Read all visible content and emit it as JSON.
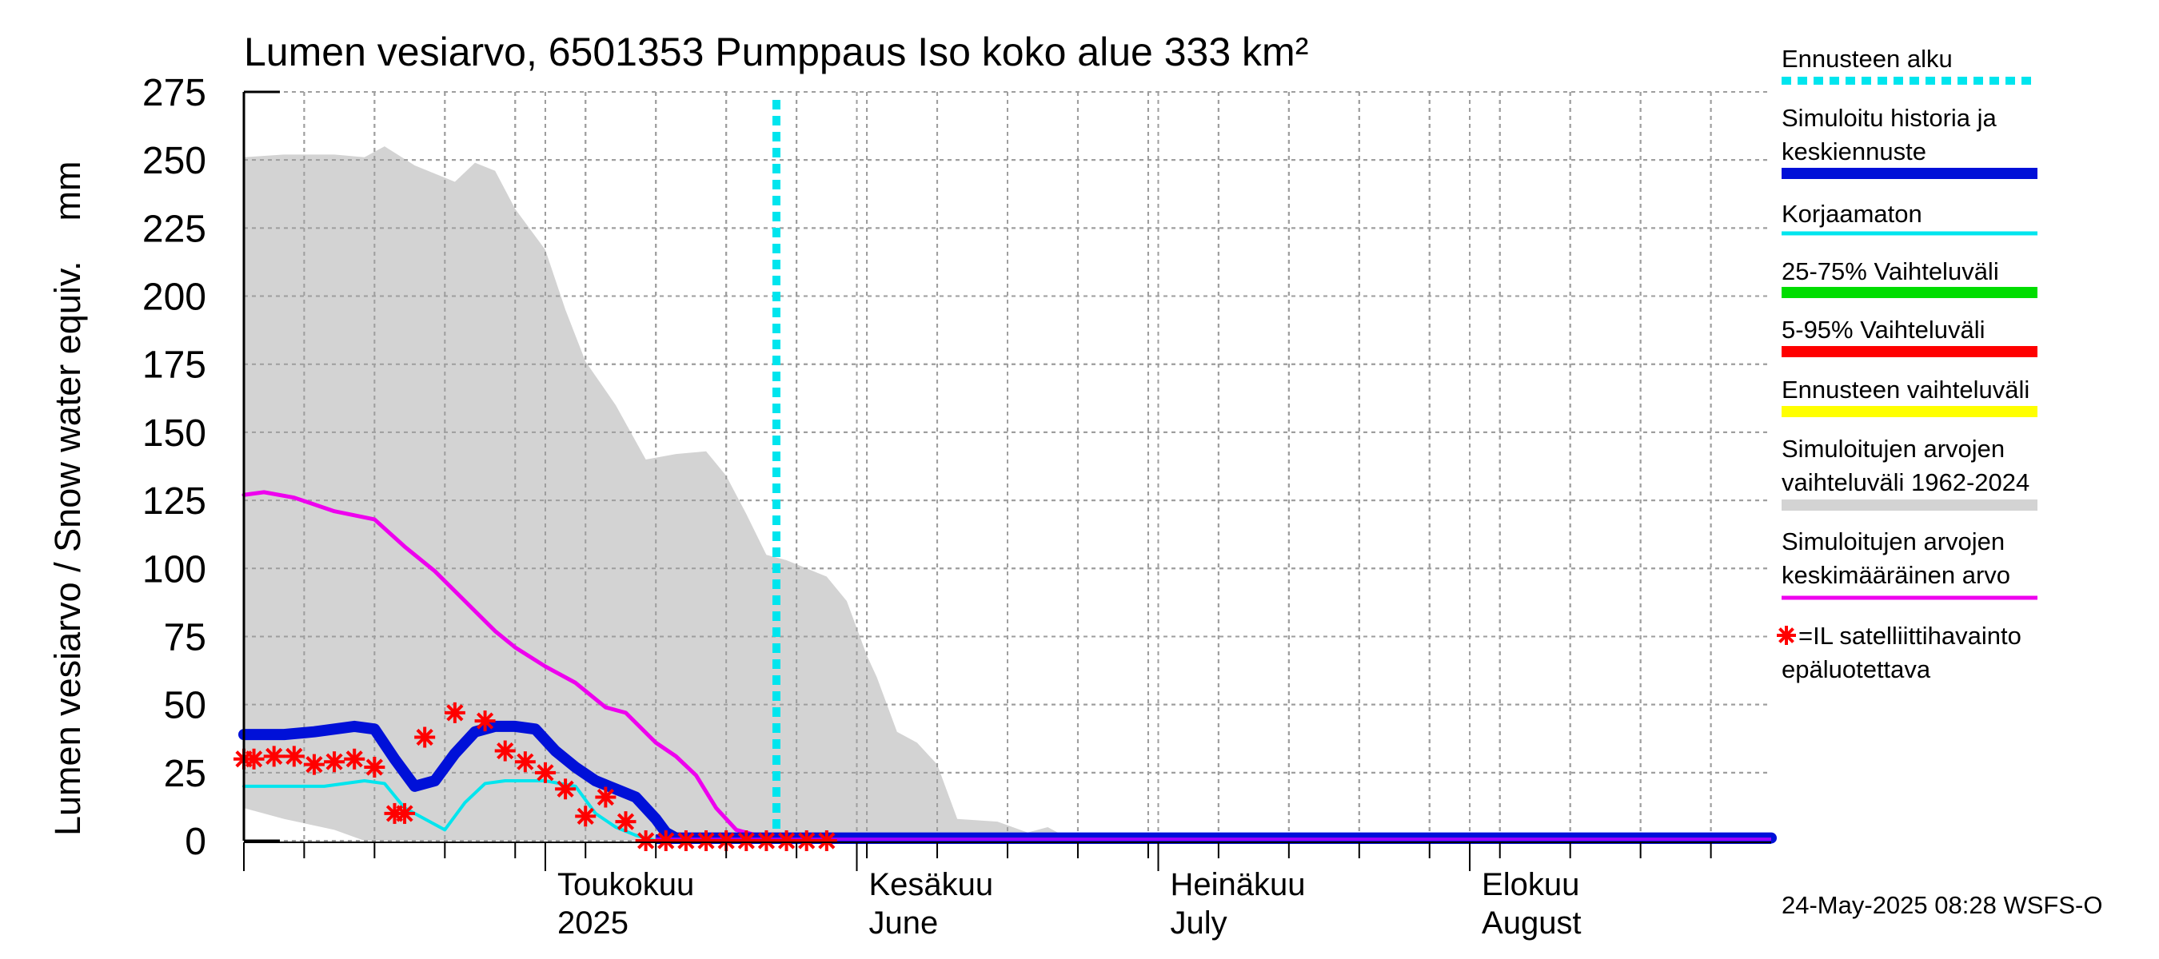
{
  "chart_data": {
    "type": "line",
    "title": "Lumen vesiarvo, 6501353 Pumppaus Iso koko alue 333 km²",
    "ylabel": "Lumen vesiarvo / Snow water equiv.    mm",
    "ylim": [
      0,
      275
    ],
    "y_ticks": [
      "0",
      "25",
      "50",
      "75",
      "100",
      "125",
      "150",
      "175",
      "200",
      "225",
      "250",
      "275"
    ],
    "x_range": [
      "2025-04-01",
      "2025-08-31"
    ],
    "grid": true,
    "legend_placement": "right",
    "month_labels": [
      {
        "date": "2025-05-01",
        "line1": "Toukokuu",
        "line2": "2025"
      },
      {
        "date": "2025-06-01",
        "line1": "Kesäkuu",
        "line2": "June"
      },
      {
        "date": "2025-07-01",
        "line1": "Heinäkuu",
        "line2": "July"
      },
      {
        "date": "2025-08-01",
        "line1": "Elokuu",
        "line2": "August"
      }
    ],
    "forecast_start": "2025-05-24",
    "legend": [
      {
        "label": "Ennusteen alku",
        "color": "#00e5ee",
        "style": "dotted"
      },
      {
        "label": "Simuloitu historia ja keskiennuste",
        "color": "#0010d8",
        "style": "thick"
      },
      {
        "label": "Korjaamaton",
        "color": "#00e5ee",
        "style": "line"
      },
      {
        "label": "25-75% Vaihteluväli",
        "color": "#00dd00",
        "style": "thick"
      },
      {
        "label": "5-95% Vaihteluväli",
        "color": "#ff0000",
        "style": "thick"
      },
      {
        "label": "Ennusteen vaihteluväli",
        "color": "#ffff00",
        "style": "thick"
      },
      {
        "label": "Simuloitujen arvojen vaihteluväli 1962-2024",
        "color": "#d3d3d3",
        "style": "thick"
      },
      {
        "label": "Simuloitujen arvojen keskimääräinen arvo",
        "color": "#ee00ee",
        "style": "line"
      },
      {
        "label": "=IL satelliittihavainto epäluotettava",
        "color": "#ff0000",
        "style": "star"
      }
    ],
    "series": [
      {
        "name": "Simuloitujen arvojen vaihteluväli 1962-2024",
        "kind": "band",
        "color": "#d3d3d3",
        "x": [
          "2025-04-01",
          "2025-04-05",
          "2025-04-10",
          "2025-04-13",
          "2025-04-15",
          "2025-04-18",
          "2025-04-20",
          "2025-04-22",
          "2025-04-24",
          "2025-04-26",
          "2025-04-28",
          "2025-05-01",
          "2025-05-03",
          "2025-05-05",
          "2025-05-08",
          "2025-05-11",
          "2025-05-14",
          "2025-05-17",
          "2025-05-19",
          "2025-05-21",
          "2025-05-23",
          "2025-05-25",
          "2025-05-27",
          "2025-05-29",
          "2025-05-31",
          "2025-06-02",
          "2025-06-03",
          "2025-06-05",
          "2025-06-07",
          "2025-06-09",
          "2025-06-11",
          "2025-06-15",
          "2025-06-18",
          "2025-06-20",
          "2025-06-22",
          "2025-08-31"
        ],
        "upper": [
          251,
          252,
          252,
          251,
          255,
          248,
          245,
          242,
          249,
          246,
          232,
          217,
          195,
          176,
          160,
          140,
          142,
          143,
          134,
          120,
          105,
          103,
          100,
          97,
          88,
          68,
          60,
          40,
          36,
          28,
          8,
          7,
          3,
          5,
          1,
          1
        ],
        "lower": [
          12,
          8,
          4,
          0,
          0,
          0,
          0,
          0,
          0,
          0,
          0,
          0,
          0,
          0,
          0,
          0,
          0,
          0,
          0,
          0,
          0,
          0,
          0,
          0,
          0,
          0,
          0,
          0,
          0,
          0,
          0,
          0,
          0,
          0,
          0,
          0
        ]
      },
      {
        "name": "Simuloitujen arvojen keskimääräinen arvo",
        "color": "#ee00ee",
        "x": [
          "2025-04-01",
          "2025-04-03",
          "2025-04-06",
          "2025-04-10",
          "2025-04-14",
          "2025-04-17",
          "2025-04-20",
          "2025-04-23",
          "2025-04-26",
          "2025-04-28",
          "2025-05-01",
          "2025-05-04",
          "2025-05-07",
          "2025-05-09",
          "2025-05-12",
          "2025-05-14",
          "2025-05-16",
          "2025-05-18",
          "2025-05-20",
          "2025-05-22",
          "2025-08-31"
        ],
        "y": [
          127,
          128,
          126,
          121,
          118,
          108,
          99,
          88,
          77,
          71,
          64,
          58,
          49,
          47,
          36,
          31,
          24,
          12,
          4,
          2,
          2
        ]
      },
      {
        "name": "Korjaamaton",
        "color": "#00e5ee",
        "x": [
          "2025-04-01",
          "2025-04-05",
          "2025-04-09",
          "2025-04-13",
          "2025-04-15",
          "2025-04-17",
          "2025-04-19",
          "2025-04-21",
          "2025-04-23",
          "2025-04-25",
          "2025-04-27",
          "2025-04-29",
          "2025-05-01",
          "2025-05-04",
          "2025-05-06",
          "2025-05-08",
          "2025-05-10",
          "2025-05-12",
          "2025-05-13",
          "2025-05-15",
          "2025-05-16",
          "2025-08-31"
        ],
        "y": [
          20,
          20,
          20,
          22,
          21,
          12,
          8,
          4,
          14,
          21,
          22,
          22,
          22,
          20,
          10,
          5,
          2,
          0,
          0,
          0,
          0,
          0
        ]
      },
      {
        "name": "Simuloitu historia ja keskiennuste",
        "color": "#0010d8",
        "x": [
          "2025-04-01",
          "2025-04-05",
          "2025-04-08",
          "2025-04-10",
          "2025-04-12",
          "2025-04-14",
          "2025-04-16",
          "2025-04-18",
          "2025-04-20",
          "2025-04-22",
          "2025-04-24",
          "2025-04-26",
          "2025-04-28",
          "2025-04-30",
          "2025-05-02",
          "2025-05-04",
          "2025-05-06",
          "2025-05-08",
          "2025-05-10",
          "2025-05-12",
          "2025-05-13",
          "2025-05-14",
          "2025-05-16",
          "2025-08-31"
        ],
        "y": [
          39,
          39,
          40,
          41,
          42,
          41,
          30,
          20,
          22,
          32,
          40,
          42,
          42,
          41,
          33,
          27,
          22,
          19,
          16,
          8,
          3,
          1,
          1,
          1
        ]
      },
      {
        "name": "=IL satelliittihavainto epäluotettava",
        "kind": "stars",
        "color": "#ff0000",
        "x": [
          "2025-04-01",
          "2025-04-02",
          "2025-04-04",
          "2025-04-06",
          "2025-04-08",
          "2025-04-10",
          "2025-04-12",
          "2025-04-14",
          "2025-04-16",
          "2025-04-17",
          "2025-04-19",
          "2025-04-22",
          "2025-04-25",
          "2025-04-27",
          "2025-04-29",
          "2025-05-01",
          "2025-05-03",
          "2025-05-05",
          "2025-05-07",
          "2025-05-09",
          "2025-05-11",
          "2025-05-13",
          "2025-05-15",
          "2025-05-17",
          "2025-05-19",
          "2025-05-21",
          "2025-05-23",
          "2025-05-25",
          "2025-05-27",
          "2025-05-29"
        ],
        "y": [
          30,
          30,
          31,
          31,
          28,
          29,
          30,
          27,
          10,
          10,
          38,
          47,
          44,
          33,
          29,
          25,
          19,
          9,
          16,
          7,
          0,
          0,
          0,
          0,
          0,
          0,
          0,
          0,
          0,
          0
        ]
      }
    ]
  },
  "footer": "24-May-2025 08:28 WSFS-O"
}
